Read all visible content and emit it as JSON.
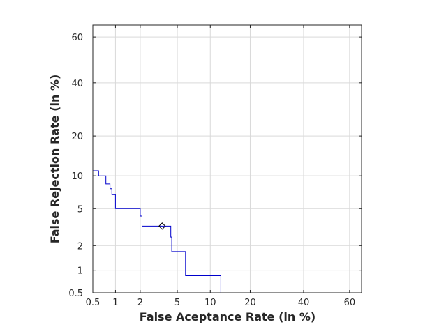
{
  "chart_data": {
    "type": "line",
    "title": "",
    "xlabel": "False Aceptance Rate (in %)",
    "ylabel": "False Rejection Rate (in %)",
    "scale": "normal-deviate (DET)",
    "xlim": [
      0.5,
      65
    ],
    "ylim": [
      0.5,
      65
    ],
    "x_ticks": [
      0.5,
      1,
      2,
      5,
      10,
      20,
      40,
      60
    ],
    "x_tick_labels": [
      "0.5",
      "1",
      "2",
      "5",
      "10",
      "20",
      "40",
      "60"
    ],
    "y_ticks": [
      0.5,
      1,
      2,
      5,
      10,
      20,
      40,
      60
    ],
    "y_tick_labels": [
      "0.5",
      "1",
      "2",
      "5",
      "10",
      "20",
      "40",
      "60"
    ],
    "grid": true,
    "series": [
      {
        "color": "#0000cc",
        "x": [
          0.5,
          0.6,
          0.6,
          0.75,
          0.75,
          0.85,
          0.85,
          0.9,
          0.9,
          1.0,
          1.0,
          2.0,
          2.0,
          2.1,
          2.1,
          4.3,
          4.3,
          4.4,
          4.4,
          6.0,
          6.0,
          12.2,
          12.2
        ],
        "y": [
          11.0,
          11.0,
          10.0,
          10.0,
          8.5,
          8.5,
          7.7,
          7.7,
          6.8,
          6.8,
          5.0,
          5.0,
          4.2,
          4.2,
          3.3,
          3.3,
          2.5,
          2.5,
          1.7,
          1.7,
          0.85,
          0.85,
          0.5
        ]
      }
    ],
    "markers": [
      {
        "shape": "diamond",
        "x": 3.5,
        "y": 3.3
      }
    ]
  }
}
